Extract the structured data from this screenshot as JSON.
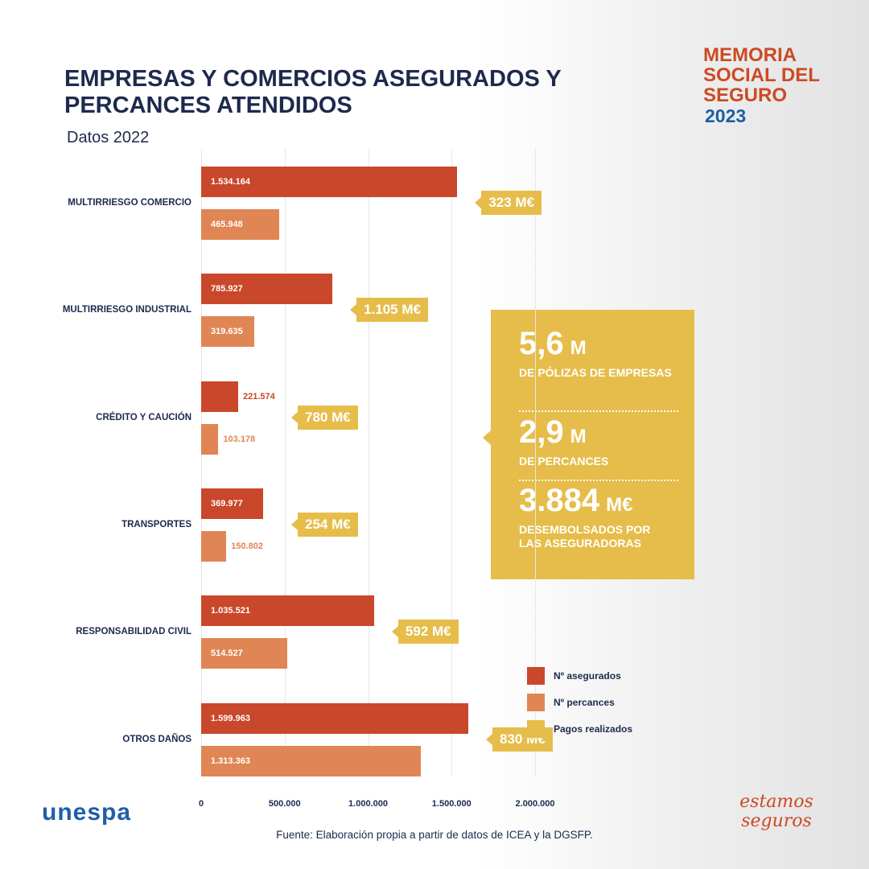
{
  "header": {
    "brand": "MEMORIA SOCIAL DEL SEGURO",
    "year": "2023"
  },
  "chart_data": {
    "type": "bar",
    "orientation": "horizontal",
    "title": "EMPRESAS Y COMERCIOS ASEGURADOS Y PERCANCES ATENDIDOS",
    "subtitle": "Datos 2022",
    "categories": [
      "MULTIRRIESGO COMERCIO",
      "MULTIRRIESGO INDUSTRIAL",
      "CRÉDITO Y CAUCIÓN",
      "TRANSPORTES",
      "RESPONSABILIDAD CIVIL",
      "OTROS DAÑOS"
    ],
    "series": [
      {
        "name": "Nº asegurados",
        "color": "#c9472a",
        "values": [
          1534164,
          785927,
          221574,
          369977,
          1035521,
          1599963
        ],
        "value_labels": [
          "1.534.164",
          "785.927",
          "221.574",
          "369.977",
          "1.035.521",
          "1.599.963"
        ]
      },
      {
        "name": "Nº percances",
        "color": "#e08654",
        "values": [
          465948,
          319635,
          103178,
          150802,
          514527,
          1313363
        ],
        "value_labels": [
          "465.948",
          "319.635",
          "103.178",
          "150.802",
          "514.527",
          "1.313.363"
        ]
      },
      {
        "name": "Pagos realizados",
        "color": "#e6bd4a",
        "style": "tag",
        "values": [
          323,
          1105,
          780,
          254,
          592,
          830
        ],
        "value_labels": [
          "323 M€",
          "1.105 M€",
          "780 M€",
          "254 M€",
          "592 M€",
          "830 M€"
        ]
      }
    ],
    "xlim": [
      0,
      2000000
    ],
    "xticks": [
      0,
      {
        "value": 500000,
        "label": "500.000"
      },
      {
        "value": 1000000,
        "label": "1.000.000"
      },
      {
        "value": 1500000,
        "label": "1.500.000"
      },
      {
        "value": 2000000,
        "label": "2.000.000"
      }
    ],
    "grid": true
  },
  "stats": [
    {
      "value": "5,6",
      "unit": "M",
      "label": "DE PÓLIZAS DE EMPRESAS"
    },
    {
      "value": "2,9",
      "unit": "M",
      "label": "DE PERCANCES"
    },
    {
      "value": "3.884",
      "unit": "M€",
      "label": "DESEMBOLSADOS POR LAS ASEGURADORAS"
    }
  ],
  "footer": {
    "source": "Fuente: Elaboración propia a partir de datos de ICEA y la DGSFP.",
    "logo_left": "unespa",
    "logo_right": "estamos seguros"
  }
}
